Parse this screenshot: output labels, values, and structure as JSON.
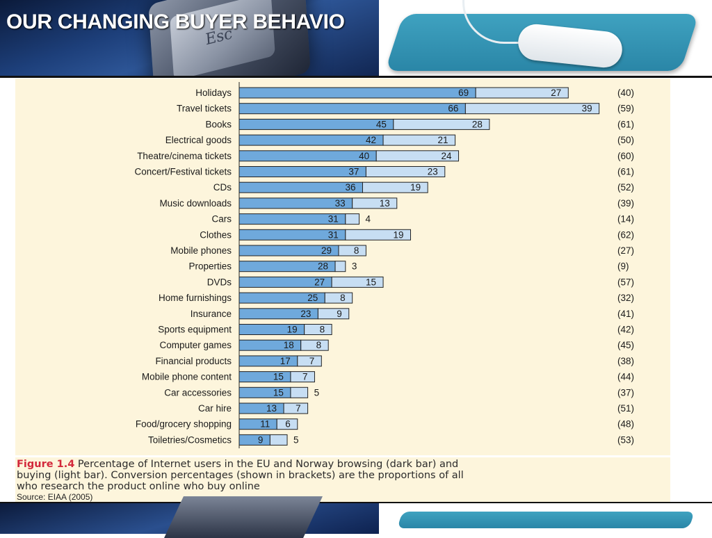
{
  "page": {
    "title": "OUR CHANGING BUYER BEHAVIO"
  },
  "header": {
    "key_label": "Esc"
  },
  "caption": {
    "figure_label": "Figure 1.4",
    "line1": "Percentage of Internet users in the EU and Norway browsing (dark bar) and",
    "line2": "buying (light bar). Conversion percentages (shown in brackets) are the proportions of all",
    "line3": "who research the product online who buy online",
    "source": "Source: EIAA (2005)"
  },
  "colors": {
    "browse": "#6fa9dc",
    "buy": "#c7def3",
    "border": "#222222",
    "figure_bg": "#fdf5dc"
  },
  "chart_data": {
    "type": "bar",
    "orientation": "horizontal",
    "stacked": true,
    "categories": [
      "Holidays",
      "Travel tickets",
      "Books",
      "Electrical goods",
      "Theatre/cinema tickets",
      "Concert/Festival tickets",
      "CDs",
      "Music downloads",
      "Cars",
      "Clothes",
      "Mobile phones",
      "Properties",
      "DVDs",
      "Home furnishings",
      "Insurance",
      "Sports equipment",
      "Computer games",
      "Financial products",
      "Mobile phone content",
      "Car accessories",
      "Car hire",
      "Food/grocery shopping",
      "Toiletries/Cosmetics"
    ],
    "series": [
      {
        "values": [
          69,
          66,
          45,
          42,
          40,
          37,
          36,
          33,
          31,
          31,
          29,
          28,
          27,
          25,
          23,
          19,
          18,
          17,
          15,
          15,
          13,
          11,
          9
        ]
      },
      {
        "values": [
          27,
          39,
          28,
          21,
          24,
          23,
          19,
          13,
          4,
          19,
          8,
          3,
          15,
          8,
          9,
          8,
          8,
          7,
          7,
          5,
          7,
          6,
          5
        ]
      }
    ],
    "conversion_labels": [
      "(40)",
      "(59)",
      "(61)",
      "(50)",
      "(60)",
      "(61)",
      "(52)",
      "(39)",
      "(14)",
      "(62)",
      "(27)",
      "(9)",
      "(57)",
      "(32)",
      "(41)",
      "(42)",
      "(45)",
      "(38)",
      "(44)",
      "(37)",
      "(51)",
      "(48)",
      "(53)"
    ],
    "grid": false
  }
}
